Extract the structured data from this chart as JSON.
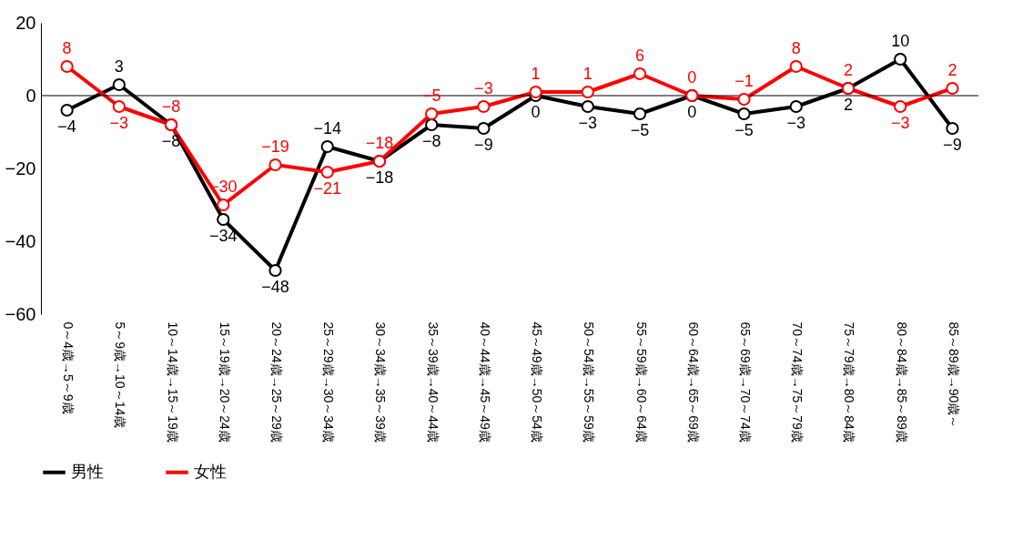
{
  "chart_data": {
    "type": "line",
    "categories": [
      "0～4歳→5～9歳",
      "5～9歳→10～14歳",
      "10～14歳→15～19歳",
      "15～19歳→20～24歳",
      "20～24歳→25～29歳",
      "25～29歳→30～34歳",
      "30～34歳→35～39歳",
      "35～39歳→40～44歳",
      "40～44歳→45～49歳",
      "45～49歳→50～54歳",
      "50～54歳→55～59歳",
      "55～59歳→60～64歳",
      "60～64歳→65～69歳",
      "65～69歳→70～74歳",
      "70～74歳→75～79歳",
      "75～79歳→80～84歳",
      "80～84歳→85～89歳",
      "85～89歳→90歳～"
    ],
    "series": [
      {
        "name": "男性",
        "color": "#000000",
        "values": [
          -4,
          3,
          -8,
          -34,
          -48,
          -14,
          -18,
          -8,
          -9,
          0,
          -3,
          -5,
          0,
          -5,
          -3,
          2,
          10,
          -9
        ]
      },
      {
        "name": "女性",
        "color": "#ff0000",
        "values": [
          8,
          -3,
          -8,
          -30,
          -19,
          -21,
          -18,
          -5,
          -3,
          1,
          1,
          6,
          0,
          -1,
          8,
          2,
          -3,
          2
        ]
      }
    ],
    "ylim": [
      -60,
      20
    ],
    "yticks": [
      -60,
      -40,
      -20,
      0,
      20
    ],
    "ref_lines": [
      {
        "axis": "y",
        "value": 0,
        "color": "#000000"
      }
    ],
    "data_labels": true,
    "marker": "circle",
    "line_style": "solid",
    "grid": false,
    "legend": "bottom"
  }
}
